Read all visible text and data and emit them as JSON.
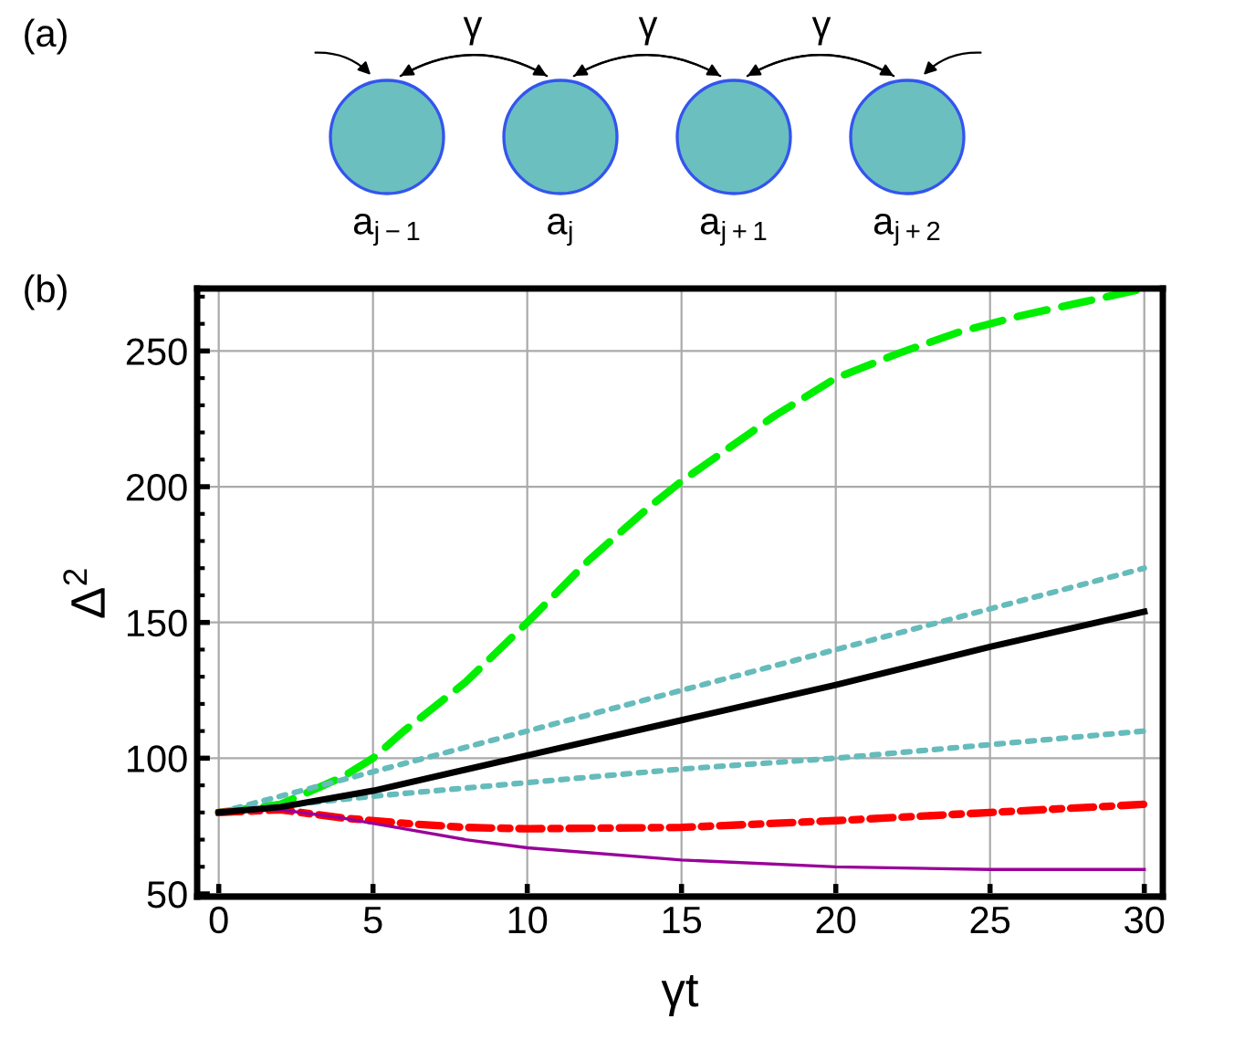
{
  "chart_data": {
    "type": "line",
    "xlabel": "γt",
    "ylabel": "Δ$^{2}$",
    "annotations": [
      "(a)",
      "(b)",
      "γ",
      "γ",
      "γ",
      "a$_{j−1}$",
      "a$_{j}$",
      "a$_{j+1}$",
      "a$_{j+2}$"
    ],
    "xlim": [
      -0.7,
      30.6
    ],
    "ylim": [
      49,
      273
    ],
    "xticks": [
      0,
      5,
      10,
      15,
      20,
      25,
      30
    ],
    "yticks": [
      50,
      100,
      150,
      200,
      250
    ],
    "grid": true,
    "legend": false,
    "series": [
      {
        "color": "#00ee00",
        "line_style": "dashed",
        "x": [
          0,
          2,
          4,
          5,
          6,
          8,
          10,
          12,
          14,
          15,
          16,
          18,
          20,
          22,
          24,
          26,
          28,
          30
        ],
        "values": [
          80,
          83,
          93,
          100,
          110,
          128,
          150,
          173,
          193,
          202,
          210,
          226,
          240,
          249,
          257,
          263,
          268,
          273
        ]
      },
      {
        "color": "#66bbbb",
        "line_style": "dotted",
        "x": [
          0,
          5,
          10,
          15,
          20,
          25,
          30
        ],
        "values": [
          80,
          95,
          110,
          125,
          140,
          155,
          170
        ]
      },
      {
        "color": "#000000",
        "line_style": "solid",
        "x": [
          0,
          2,
          5,
          10,
          15,
          20,
          25,
          30
        ],
        "values": [
          80,
          82,
          88,
          101,
          114,
          127,
          141,
          154
        ]
      },
      {
        "color": "#66bbbb",
        "line_style": "dotted",
        "x": [
          0,
          5,
          10,
          15,
          20,
          25,
          30
        ],
        "values": [
          80,
          86,
          91,
          96,
          100,
          105,
          110
        ]
      },
      {
        "color": "#ff0000",
        "line_style": "dashdot",
        "x": [
          0,
          2,
          4,
          6,
          8,
          10,
          15,
          20,
          25,
          30
        ],
        "values": [
          80,
          81,
          78,
          76,
          74.5,
          74,
          74.5,
          77,
          80,
          83
        ]
      },
      {
        "color": "#990099",
        "line_style": "solid",
        "x": [
          0,
          2,
          4,
          6,
          8,
          10,
          15,
          20,
          25,
          30
        ],
        "values": [
          80,
          81,
          78,
          74,
          70,
          67,
          62.5,
          60,
          59,
          59
        ]
      }
    ]
  }
}
